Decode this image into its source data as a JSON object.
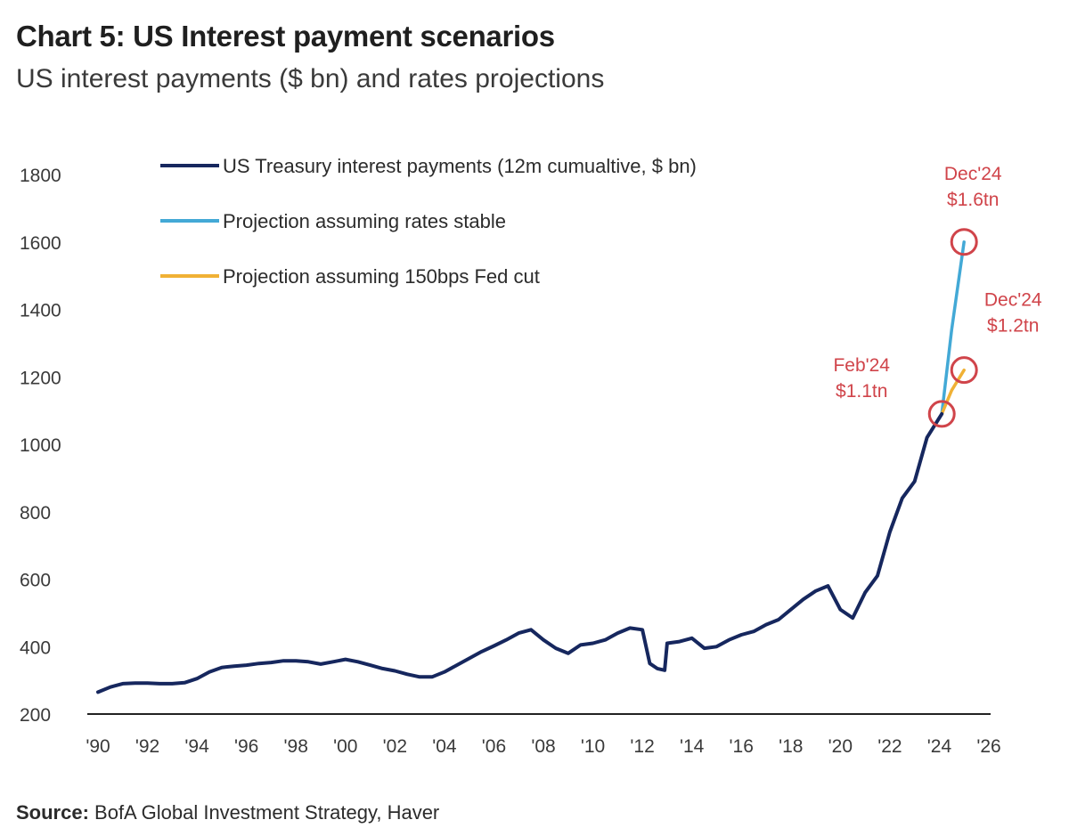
{
  "title": "Chart 5: US Interest payment scenarios",
  "subtitle": "US interest payments ($ bn) and rates projections",
  "source": {
    "label": "Source:",
    "text": " BofA Global Investment Strategy, Haver"
  },
  "colors": {
    "actual": "#16275e",
    "stable": "#43a9d6",
    "cut": "#f0b135",
    "annotation": "#d0444a",
    "axis": "#222222"
  },
  "chart_data": {
    "type": "line",
    "title": "Chart 5: US Interest payment scenarios",
    "subtitle": "US interest payments ($ bn) and rates projections",
    "xlabel": "",
    "ylabel": "",
    "xlim": [
      1990,
      2026
    ],
    "ylim": [
      200,
      1800
    ],
    "y_ticks": [
      200,
      400,
      600,
      800,
      1000,
      1200,
      1400,
      1600,
      1800
    ],
    "x_ticks": [
      {
        "value": 1990,
        "label": "'90"
      },
      {
        "value": 1992,
        "label": "'92"
      },
      {
        "value": 1994,
        "label": "'94"
      },
      {
        "value": 1996,
        "label": "'96"
      },
      {
        "value": 1998,
        "label": "'98"
      },
      {
        "value": 2000,
        "label": "'00"
      },
      {
        "value": 2002,
        "label": "'02"
      },
      {
        "value": 2004,
        "label": "'04"
      },
      {
        "value": 2006,
        "label": "'06"
      },
      {
        "value": 2008,
        "label": "'08"
      },
      {
        "value": 2010,
        "label": "'10"
      },
      {
        "value": 2012,
        "label": "'12"
      },
      {
        "value": 2014,
        "label": "'14"
      },
      {
        "value": 2016,
        "label": "'16"
      },
      {
        "value": 2018,
        "label": "'18"
      },
      {
        "value": 2020,
        "label": "'20"
      },
      {
        "value": 2022,
        "label": "'22"
      },
      {
        "value": 2024,
        "label": "'24"
      },
      {
        "value": 2026,
        "label": "'26"
      }
    ],
    "grid": false,
    "legend_position": "top-left",
    "series": [
      {
        "name": "US Treasury interest payments (12m cumualtive, $ bn)",
        "color": "#16275e",
        "x": [
          1990.0,
          1990.5,
          1991.0,
          1991.5,
          1992.0,
          1992.5,
          1993.0,
          1993.5,
          1994.0,
          1994.5,
          1995.0,
          1995.5,
          1996.0,
          1996.5,
          1997.0,
          1997.5,
          1998.0,
          1998.5,
          1999.0,
          1999.5,
          2000.0,
          2000.5,
          2001.0,
          2001.5,
          2002.0,
          2002.5,
          2003.0,
          2003.5,
          2004.0,
          2004.5,
          2005.0,
          2005.5,
          2006.0,
          2006.5,
          2007.0,
          2007.5,
          2008.0,
          2008.5,
          2009.0,
          2009.5,
          2010.0,
          2010.5,
          2011.0,
          2011.5,
          2012.0,
          2012.3,
          2012.6,
          2012.9,
          2013.0,
          2013.5,
          2014.0,
          2014.5,
          2015.0,
          2015.5,
          2016.0,
          2016.5,
          2017.0,
          2017.5,
          2018.0,
          2018.5,
          2019.0,
          2019.5,
          2020.0,
          2020.5,
          2021.0,
          2021.5,
          2022.0,
          2022.5,
          2023.0,
          2023.5,
          2024.1
        ],
        "values": [
          265,
          280,
          290,
          292,
          292,
          290,
          290,
          293,
          305,
          325,
          338,
          342,
          345,
          350,
          353,
          358,
          358,
          355,
          348,
          355,
          362,
          355,
          345,
          335,
          328,
          318,
          310,
          310,
          325,
          345,
          365,
          385,
          402,
          420,
          440,
          450,
          420,
          395,
          380,
          405,
          410,
          420,
          440,
          455,
          450,
          350,
          335,
          330,
          410,
          415,
          425,
          395,
          400,
          420,
          435,
          445,
          465,
          480,
          510,
          540,
          565,
          580,
          510,
          485,
          560,
          610,
          740,
          840,
          890,
          1020,
          1090
        ]
      },
      {
        "name": "Projection assuming rates stable",
        "color": "#43a9d6",
        "x": [
          2024.1,
          2024.5,
          2025.0
        ],
        "values": [
          1090,
          1340,
          1600
        ]
      },
      {
        "name": "Projection assuming 150bps Fed cut",
        "color": "#f0b135",
        "x": [
          2024.1,
          2024.5,
          2025.0
        ],
        "values": [
          1090,
          1160,
          1220
        ]
      }
    ],
    "annotations": [
      {
        "lines": [
          "Dec'24",
          "$1.6tn"
        ],
        "x": 2025.0,
        "y": 1600
      },
      {
        "lines": [
          "Dec'24",
          "$1.2tn"
        ],
        "x": 2025.0,
        "y": 1220
      },
      {
        "lines": [
          "Feb'24",
          "$1.1tn"
        ],
        "x": 2024.1,
        "y": 1090
      }
    ]
  }
}
